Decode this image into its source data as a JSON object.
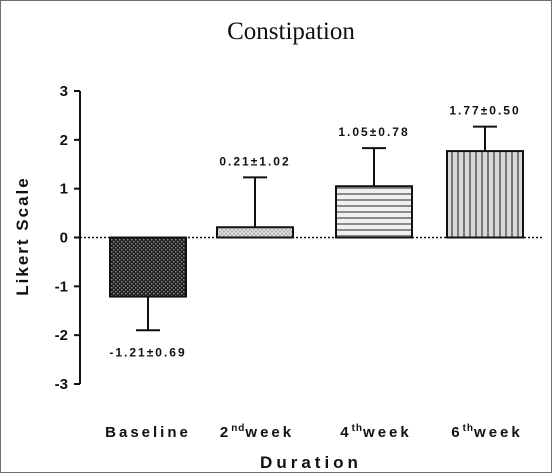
{
  "chart_data": {
    "type": "bar",
    "title": "Constipation",
    "xlabel": "Duration",
    "ylabel": "Likert Scale",
    "ylim": [
      -3,
      3
    ],
    "yticks": [
      "-3",
      "-2",
      "-1",
      "0",
      "1",
      "2",
      "3"
    ],
    "categories": [
      {
        "base": "Baseline",
        "sup": ""
      },
      {
        "base": "2",
        "sup": "nd",
        "rest": "week"
      },
      {
        "base": "4",
        "sup": "th",
        "rest": "week"
      },
      {
        "base": "6",
        "sup": "th",
        "rest": "week"
      }
    ],
    "values": [
      -1.21,
      0.21,
      1.05,
      1.77
    ],
    "errors": [
      0.69,
      1.02,
      0.78,
      0.5
    ],
    "data_labels": [
      "-1.21±0.69",
      "0.21±1.02",
      "1.05±0.78",
      "1.77±0.50"
    ],
    "patterns": [
      "dark-dotted",
      "light-dotted",
      "horizontal-lines",
      "vertical-lines"
    ],
    "grid": false,
    "zero_line": "dotted"
  }
}
